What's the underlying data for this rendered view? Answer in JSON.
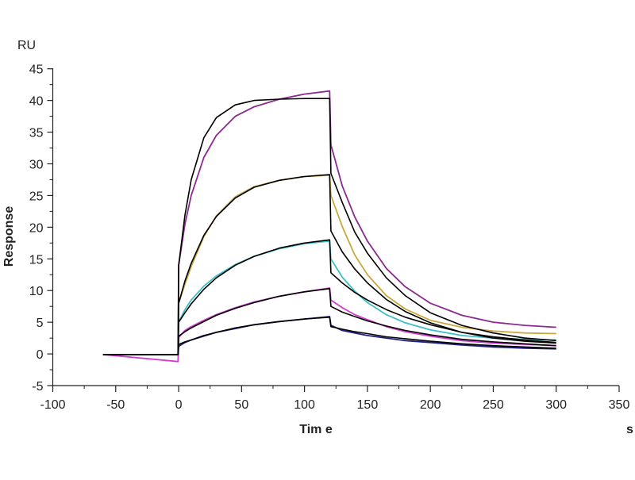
{
  "chart_data": {
    "type": "line",
    "title": "",
    "xlabel": "Tim e",
    "ylabel": "Response",
    "x_unit": "s",
    "y_unit": "RU",
    "xlim": [
      -100,
      350
    ],
    "ylim": [
      -5,
      45
    ],
    "x_ticks": [
      -100,
      -50,
      0,
      50,
      100,
      150,
      200,
      250,
      300,
      350
    ],
    "y_ticks": [
      -5,
      0,
      5,
      10,
      15,
      20,
      25,
      30,
      35,
      40,
      45
    ],
    "grid": false,
    "legend": "none",
    "x": [
      -60,
      -0.5,
      0,
      5,
      10,
      20,
      30,
      45,
      60,
      80,
      100,
      120,
      121,
      130,
      140,
      150,
      165,
      180,
      200,
      225,
      250,
      275,
      300
    ],
    "series": [
      {
        "name": "data-1",
        "color": "#8a2a8e",
        "kind": "measured",
        "values": [
          -0.1,
          -0.1,
          14,
          20.5,
          25,
          31,
          34.5,
          37.5,
          39,
          40.2,
          41,
          41.5,
          33,
          26.5,
          21.6,
          17.8,
          13.5,
          10.6,
          8.0,
          6.1,
          5.0,
          4.5,
          4.2
        ]
      },
      {
        "name": "data-2",
        "color": "#c9a83c",
        "kind": "measured",
        "values": [
          -0.1,
          -0.1,
          8,
          11,
          13.8,
          18.5,
          21.8,
          24.8,
          26.4,
          27.4,
          28.0,
          28.2,
          25,
          20.1,
          15.6,
          12.5,
          9.2,
          7.1,
          5.3,
          4.2,
          3.6,
          3.3,
          3.2
        ]
      },
      {
        "name": "data-3",
        "color": "#3cc0c4",
        "kind": "measured",
        "values": [
          -0.1,
          -0.1,
          5,
          7,
          8.5,
          10.7,
          12.3,
          14.1,
          15.4,
          16.6,
          17.4,
          17.8,
          15,
          12.1,
          9.9,
          8.1,
          6.2,
          4.9,
          3.8,
          2.9,
          2.5,
          2.3,
          2.2
        ]
      },
      {
        "name": "data-4",
        "color": "#d03cd0",
        "kind": "measured",
        "values": [
          -0.1,
          -1.2,
          2.6,
          3.7,
          4.3,
          5.3,
          6.2,
          7.3,
          8.2,
          9.1,
          9.8,
          10.4,
          8.5,
          7.3,
          6.2,
          5.4,
          4.3,
          3.5,
          2.8,
          2.1,
          1.7,
          1.5,
          1.3
        ]
      },
      {
        "name": "data-5",
        "color": "#1e1e80",
        "kind": "measured",
        "values": [
          -0.1,
          -0.1,
          1.2,
          1.8,
          2.2,
          2.8,
          3.4,
          4.0,
          4.6,
          5.1,
          5.5,
          5.9,
          4.5,
          3.7,
          3.3,
          2.9,
          2.5,
          2.1,
          1.8,
          1.4,
          1.1,
          0.9,
          0.8
        ]
      },
      {
        "name": "fit-1",
        "color": "#000000",
        "kind": "fit",
        "values": [
          -0.1,
          -0.1,
          14,
          21.9,
          27.5,
          34.1,
          37.3,
          39.3,
          40.0,
          40.2,
          40.3,
          40.3,
          28.5,
          23.9,
          19.2,
          15.9,
          12.0,
          9.2,
          6.5,
          4.5,
          3.3,
          2.5,
          2.1
        ]
      },
      {
        "name": "fit-2",
        "color": "#000000",
        "kind": "fit",
        "values": [
          -0.1,
          -0.1,
          8,
          11.5,
          14.3,
          18.7,
          21.7,
          24.6,
          26.3,
          27.4,
          28.0,
          28.3,
          19.4,
          16.1,
          13.4,
          11.2,
          8.6,
          6.7,
          4.9,
          3.4,
          2.5,
          2.0,
          1.7
        ]
      },
      {
        "name": "fit-3",
        "color": "#000000",
        "kind": "fit",
        "values": [
          -0.1,
          -0.1,
          5,
          6.5,
          7.9,
          10.2,
          12.0,
          14.0,
          15.4,
          16.7,
          17.5,
          18.0,
          12.8,
          11.2,
          9.7,
          8.5,
          7.0,
          5.8,
          4.6,
          3.4,
          2.7,
          2.2,
          1.8
        ]
      },
      {
        "name": "fit-4",
        "color": "#000000",
        "kind": "fit",
        "values": [
          -0.1,
          -0.1,
          2.8,
          3.5,
          4.1,
          5.1,
          6.1,
          7.2,
          8.1,
          9.1,
          9.8,
          10.3,
          7.5,
          6.6,
          5.9,
          5.2,
          4.4,
          3.7,
          3.0,
          2.3,
          1.9,
          1.6,
          1.3
        ]
      },
      {
        "name": "fit-5",
        "color": "#000000",
        "kind": "fit",
        "values": [
          -0.1,
          -0.1,
          1.5,
          1.9,
          2.2,
          2.9,
          3.4,
          4.1,
          4.6,
          5.1,
          5.5,
          5.8,
          4.3,
          3.9,
          3.5,
          3.2,
          2.7,
          2.4,
          2.0,
          1.6,
          1.3,
          1.1,
          0.9
        ]
      }
    ]
  }
}
